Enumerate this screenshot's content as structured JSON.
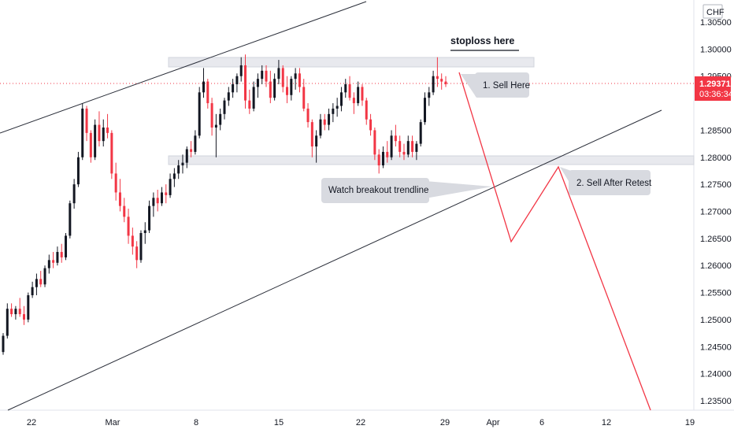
{
  "chart_data": {
    "type": "candlestick",
    "currency_label": "CHF",
    "current_price": "1.29371",
    "countdown": "03:36:34",
    "ylim": [
      1.2325,
      1.3065
    ],
    "y_ticks": [
      "1.30500",
      "1.30000",
      "1.29500",
      "1.29000",
      "1.28500",
      "1.28000",
      "1.27500",
      "1.27000",
      "1.26500",
      "1.26000",
      "1.25500",
      "1.25000",
      "1.24500",
      "1.24000",
      "1.23500"
    ],
    "x_ticks": [
      "22",
      "Mar",
      "8",
      "15",
      "22",
      "29",
      "Apr",
      "6",
      "12",
      "19"
    ],
    "candles_ohlc": [
      [
        1.244,
        1.2475,
        1.2435,
        1.247
      ],
      [
        1.247,
        1.253,
        1.2465,
        1.252
      ],
      [
        1.252,
        1.253,
        1.2505,
        1.251
      ],
      [
        1.251,
        1.2525,
        1.25,
        1.252
      ],
      [
        1.252,
        1.254,
        1.2505,
        1.251
      ],
      [
        1.251,
        1.2525,
        1.249,
        1.25
      ],
      [
        1.25,
        1.255,
        1.2495,
        1.2545
      ],
      [
        1.2545,
        1.257,
        1.254,
        1.256
      ],
      [
        1.256,
        1.2585,
        1.2545,
        1.2575
      ],
      [
        1.2575,
        1.259,
        1.256,
        1.2565
      ],
      [
        1.2565,
        1.26,
        1.256,
        1.2595
      ],
      [
        1.2595,
        1.262,
        1.2585,
        1.261
      ],
      [
        1.261,
        1.2625,
        1.2595,
        1.2605
      ],
      [
        1.2605,
        1.2635,
        1.26,
        1.2625
      ],
      [
        1.2625,
        1.264,
        1.2605,
        1.2615
      ],
      [
        1.2615,
        1.266,
        1.261,
        1.2655
      ],
      [
        1.2655,
        1.272,
        1.265,
        1.2715
      ],
      [
        1.2715,
        1.276,
        1.2705,
        1.275
      ],
      [
        1.275,
        1.281,
        1.2745,
        1.28
      ],
      [
        1.28,
        1.29,
        1.2795,
        1.289
      ],
      [
        1.289,
        1.2895,
        1.283,
        1.2845
      ],
      [
        1.2845,
        1.285,
        1.279,
        1.28
      ],
      [
        1.28,
        1.287,
        1.2795,
        1.286
      ],
      [
        1.286,
        1.2885,
        1.282,
        1.283
      ],
      [
        1.283,
        1.287,
        1.282,
        1.2855
      ],
      [
        1.2855,
        1.288,
        1.2835,
        1.2845
      ],
      [
        1.2845,
        1.285,
        1.276,
        1.277
      ],
      [
        1.277,
        1.279,
        1.272,
        1.2735
      ],
      [
        1.2735,
        1.276,
        1.27,
        1.271
      ],
      [
        1.271,
        1.2725,
        1.268,
        1.269
      ],
      [
        1.269,
        1.2705,
        1.264,
        1.2655
      ],
      [
        1.2655,
        1.267,
        1.262,
        1.2635
      ],
      [
        1.2635,
        1.2645,
        1.2595,
        1.261
      ],
      [
        1.261,
        1.2665,
        1.2605,
        1.266
      ],
      [
        1.266,
        1.268,
        1.264,
        1.2665
      ],
      [
        1.2665,
        1.272,
        1.266,
        1.271
      ],
      [
        1.271,
        1.2735,
        1.269,
        1.2725
      ],
      [
        1.2725,
        1.274,
        1.27,
        1.2715
      ],
      [
        1.2715,
        1.2745,
        1.271,
        1.2735
      ],
      [
        1.2735,
        1.275,
        1.2715,
        1.273
      ],
      [
        1.273,
        1.277,
        1.2725,
        1.276
      ],
      [
        1.276,
        1.278,
        1.2745,
        1.277
      ],
      [
        1.277,
        1.2795,
        1.276,
        1.2785
      ],
      [
        1.2785,
        1.2805,
        1.277,
        1.279
      ],
      [
        1.279,
        1.282,
        1.278,
        1.2815
      ],
      [
        1.2815,
        1.283,
        1.28,
        1.281
      ],
      [
        1.281,
        1.285,
        1.2805,
        1.284
      ],
      [
        1.284,
        1.293,
        1.2835,
        1.292
      ],
      [
        1.292,
        1.2965,
        1.291,
        1.294
      ],
      [
        1.294,
        1.2945,
        1.289,
        1.29
      ],
      [
        1.29,
        1.291,
        1.284,
        1.2855
      ],
      [
        1.2855,
        1.288,
        1.28,
        1.286
      ],
      [
        1.286,
        1.289,
        1.285,
        1.288
      ],
      [
        1.288,
        1.291,
        1.287,
        1.2905
      ],
      [
        1.2905,
        1.293,
        1.2895,
        1.292
      ],
      [
        1.292,
        1.2945,
        1.291,
        1.2935
      ],
      [
        1.2935,
        1.2955,
        1.292,
        1.295
      ],
      [
        1.295,
        1.2985,
        1.294,
        1.297
      ],
      [
        1.297,
        1.299,
        1.289,
        1.2905
      ],
      [
        1.2905,
        1.2925,
        1.288,
        1.289
      ],
      [
        1.289,
        1.294,
        1.2885,
        1.293
      ],
      [
        1.293,
        1.2955,
        1.291,
        1.2945
      ],
      [
        1.2945,
        1.297,
        1.2935,
        1.296
      ],
      [
        1.296,
        1.297,
        1.293,
        1.294
      ],
      [
        1.294,
        1.296,
        1.29,
        1.291
      ],
      [
        1.291,
        1.2955,
        1.2905,
        1.2945
      ],
      [
        1.2945,
        1.298,
        1.2935,
        1.2965
      ],
      [
        1.2965,
        1.297,
        1.292,
        1.293
      ],
      [
        1.293,
        1.295,
        1.29,
        1.2915
      ],
      [
        1.2915,
        1.295,
        1.2905,
        1.2945
      ],
      [
        1.2945,
        1.2965,
        1.2925,
        1.2955
      ],
      [
        1.2955,
        1.2965,
        1.292,
        1.293
      ],
      [
        1.293,
        1.2945,
        1.2885,
        1.289
      ],
      [
        1.289,
        1.29,
        1.2855,
        1.2865
      ],
      [
        1.2865,
        1.287,
        1.28,
        1.282
      ],
      [
        1.282,
        1.285,
        1.279,
        1.284
      ],
      [
        1.284,
        1.288,
        1.2835,
        1.287
      ],
      [
        1.287,
        1.288,
        1.285,
        1.286
      ],
      [
        1.286,
        1.289,
        1.285,
        1.288
      ],
      [
        1.288,
        1.29,
        1.2865,
        1.289
      ],
      [
        1.289,
        1.291,
        1.2875,
        1.2895
      ],
      [
        1.2895,
        1.293,
        1.2885,
        1.292
      ],
      [
        1.292,
        1.2945,
        1.291,
        1.2935
      ],
      [
        1.2935,
        1.295,
        1.2905,
        1.291
      ],
      [
        1.291,
        1.292,
        1.288,
        1.29
      ],
      [
        1.29,
        1.294,
        1.2895,
        1.293
      ],
      [
        1.293,
        1.2935,
        1.2895,
        1.2905
      ],
      [
        1.2905,
        1.291,
        1.286,
        1.287
      ],
      [
        1.287,
        1.288,
        1.284,
        1.285
      ],
      [
        1.285,
        1.2855,
        1.2795,
        1.2805
      ],
      [
        1.2805,
        1.2815,
        1.277,
        1.2785
      ],
      [
        1.2785,
        1.282,
        1.278,
        1.281
      ],
      [
        1.281,
        1.283,
        1.279,
        1.28
      ],
      [
        1.28,
        1.285,
        1.2795,
        1.284
      ],
      [
        1.284,
        1.286,
        1.282,
        1.283
      ],
      [
        1.283,
        1.284,
        1.28,
        1.281
      ],
      [
        1.281,
        1.2825,
        1.2795,
        1.2805
      ],
      [
        1.2805,
        1.284,
        1.28,
        1.283
      ],
      [
        1.283,
        1.284,
        1.28,
        1.281
      ],
      [
        1.281,
        1.283,
        1.2795,
        1.2825
      ],
      [
        1.2825,
        1.287,
        1.282,
        1.2865
      ],
      [
        1.2865,
        1.292,
        1.286,
        1.291
      ],
      [
        1.291,
        1.293,
        1.2895,
        1.292
      ],
      [
        1.292,
        1.296,
        1.2915,
        1.295
      ],
      [
        1.295,
        1.2985,
        1.293,
        1.2945
      ],
      [
        1.2945,
        1.2955,
        1.2925,
        1.294
      ],
      [
        1.294,
        1.295,
        1.293,
        1.2935
      ]
    ],
    "resistance_zone": [
      1.2965,
      1.2982
    ],
    "support_zone": [
      1.279,
      1.2808
    ],
    "channel_upper_line": [
      [
        "t0",
        1.288
      ],
      [
        "t_right",
        1.31
      ]
    ],
    "channel_lower_line": [
      [
        "t0",
        1.231
      ],
      [
        "t_end",
        1.288
      ]
    ],
    "projection_path": [
      1.2965,
      1.2645,
      1.2785,
      1.233
    ],
    "annotations": {
      "stoploss": "stoploss here",
      "sell_here": "1. Sell Here",
      "sell_retest": "2. Sell After Retest",
      "watch_breakout": "Watch breakout trendline"
    },
    "colors": {
      "up": "#131722",
      "down": "#f23645",
      "projection": "#f23645",
      "price_tag": "#f23645",
      "zone": "#d1d4dc",
      "callout": "#d1d4dc"
    }
  }
}
